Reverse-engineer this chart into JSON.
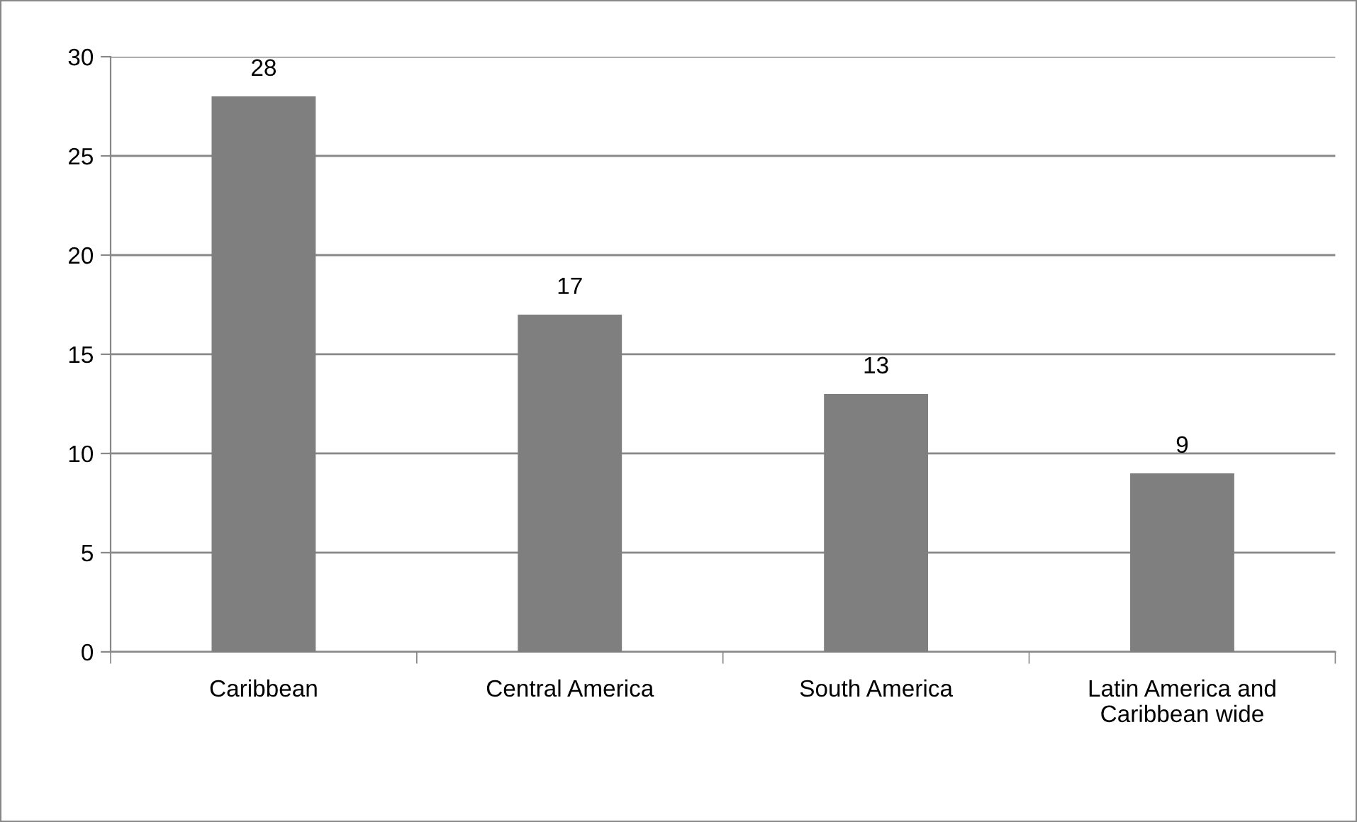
{
  "chart_data": {
    "type": "bar",
    "categories": [
      "Caribbean",
      "Central America",
      "South America",
      "Latin America and\nCaribbean wide"
    ],
    "values": [
      28,
      17,
      13,
      9
    ],
    "color": "#7f7f7f",
    "ylim": [
      0,
      30
    ],
    "yticks": [
      0,
      5,
      10,
      15,
      20,
      25,
      30
    ],
    "grid": "y",
    "data_labels": true
  }
}
